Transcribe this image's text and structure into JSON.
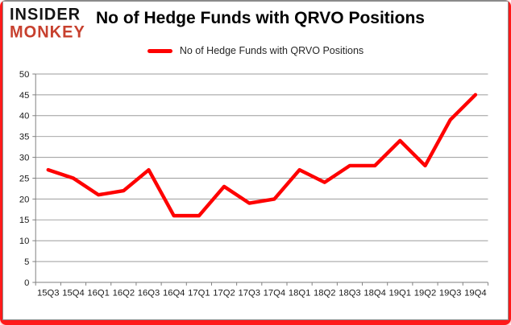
{
  "logo": {
    "line1": "INSIDER",
    "line2": "MONKEY"
  },
  "header": {
    "title": "No of Hedge Funds with QRVO Positions"
  },
  "legend": {
    "label": "No of Hedge Funds with QRVO Positions"
  },
  "colors": {
    "line": "#fe0000",
    "grid": "#9b9b9b",
    "axis": "#7f7f7f",
    "tick_text": "#1a1a1a",
    "logo_red": "#c7402e",
    "frame_red": "#ff1a1a"
  },
  "chart_data": {
    "type": "line",
    "title": "No of Hedge Funds with QRVO Positions",
    "categories": [
      "15Q3",
      "15Q4",
      "16Q1",
      "16Q2",
      "16Q3",
      "16Q4",
      "17Q1",
      "17Q2",
      "17Q3",
      "17Q4",
      "18Q1",
      "18Q2",
      "18Q3",
      "18Q4",
      "19Q1",
      "19Q2",
      "19Q3",
      "19Q4"
    ],
    "series": [
      {
        "name": "No of Hedge Funds with QRVO Positions",
        "values": [
          27,
          25,
          21,
          22,
          27,
          16,
          16,
          23,
          19,
          20,
          27,
          24,
          28,
          28,
          34,
          28,
          39,
          45
        ]
      }
    ],
    "xlabel": "",
    "ylabel": "",
    "ylim": [
      0,
      50
    ],
    "ytick_step": 5,
    "grid": true,
    "legend_position": "top"
  }
}
